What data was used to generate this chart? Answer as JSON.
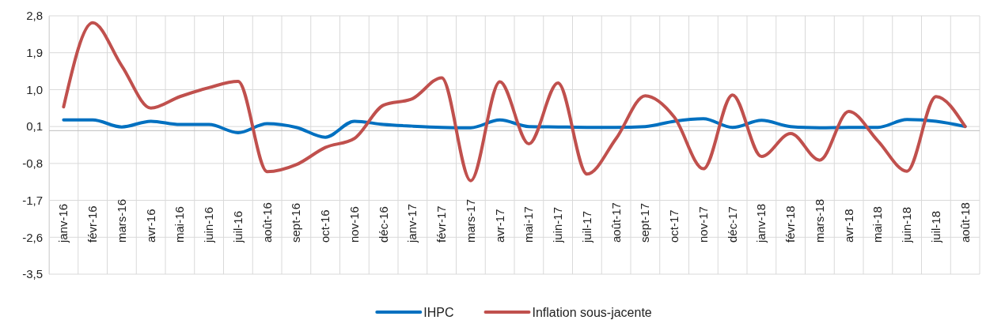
{
  "chart_data": {
    "type": "line",
    "categories": [
      "janv-16",
      "févr-16",
      "mars-16",
      "avr-16",
      "mai-16",
      "juin-16",
      "juil-16",
      "août-16",
      "sept-16",
      "oct-16",
      "nov-16",
      "déc-16",
      "janv-17",
      "févr-17",
      "mars-17",
      "avr-17",
      "mai-17",
      "juin-17",
      "juil-17",
      "août-17",
      "sept-17",
      "oct-17",
      "nov-17",
      "déc-17",
      "janv-18",
      "févr-18",
      "mars-18",
      "avr-18",
      "mai-18",
      "juin-18",
      "juil-18",
      "août-18"
    ],
    "series": [
      {
        "name": "IHPC",
        "color": "#0070c0",
        "values": [
          0.26,
          0.26,
          0.09,
          0.23,
          0.15,
          0.15,
          -0.05,
          0.17,
          0.08,
          -0.16,
          0.23,
          0.15,
          0.11,
          0.08,
          0.07,
          0.26,
          0.1,
          0.09,
          0.08,
          0.08,
          0.1,
          0.23,
          0.29,
          0.08,
          0.25,
          0.1,
          0.07,
          0.08,
          0.08,
          0.27,
          0.23,
          0.1
        ]
      },
      {
        "name": "Inflation sous-jacente",
        "color": "#c0504d",
        "values": [
          0.58,
          2.63,
          1.58,
          0.55,
          0.83,
          1.05,
          1.2,
          -1.0,
          -0.83,
          -0.41,
          -0.19,
          0.62,
          0.78,
          1.29,
          -1.22,
          1.19,
          -0.32,
          1.16,
          -1.06,
          -0.19,
          0.85,
          0.33,
          -0.93,
          0.87,
          -0.63,
          -0.07,
          -0.72,
          0.47,
          -0.25,
          -0.99,
          0.83,
          0.1
        ]
      }
    ],
    "ylim": [
      -3.5,
      2.8
    ],
    "yticks": [
      {
        "value": 2.8,
        "label": "2,8"
      },
      {
        "value": 1.9,
        "label": "1,9"
      },
      {
        "value": 1.0,
        "label": "1,0"
      },
      {
        "value": 0.1,
        "label": "0,1"
      },
      {
        "value": -0.8,
        "label": "-0,8"
      },
      {
        "value": -1.7,
        "label": "-1,7"
      },
      {
        "value": -2.6,
        "label": "-2,6"
      },
      {
        "value": -3.5,
        "label": "-3,5"
      }
    ],
    "grid": true,
    "legend": "bottom",
    "marker": "none",
    "line_style": "solid"
  }
}
